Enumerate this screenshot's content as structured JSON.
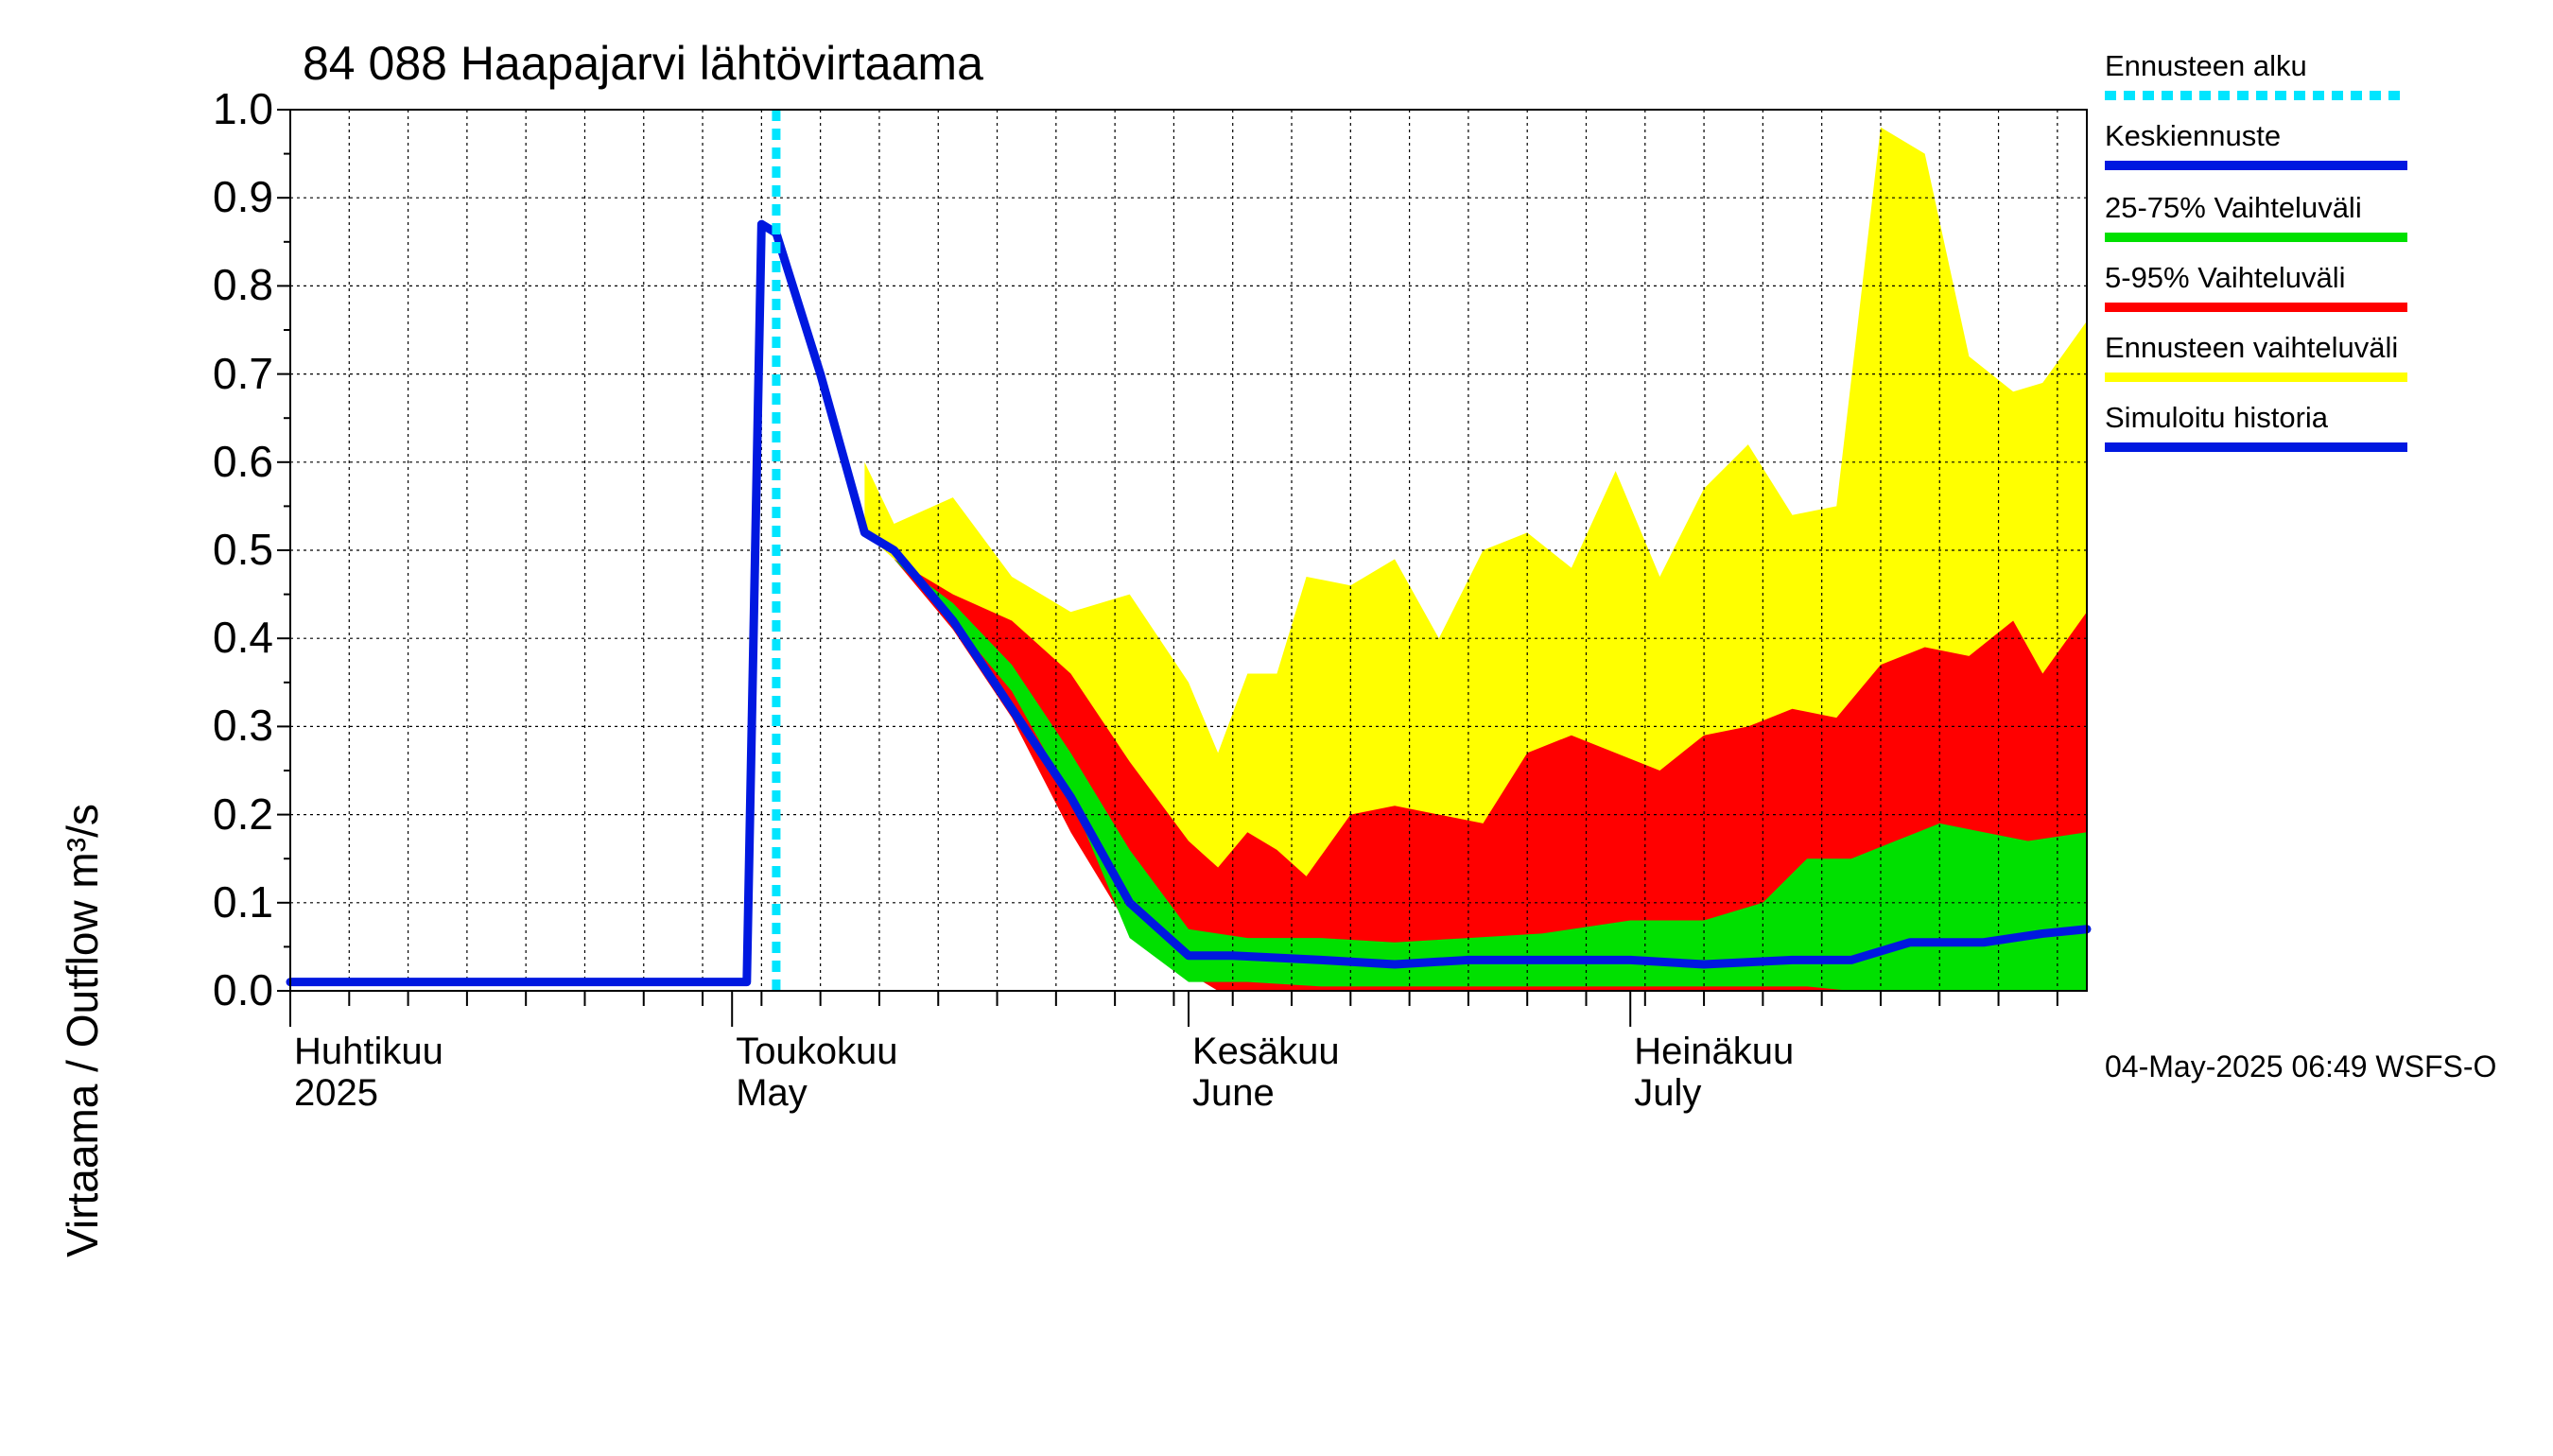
{
  "chart_data": {
    "type": "area",
    "title": "84 088 Haapajarvi lähtövirtaama",
    "ylabel": "Virtaama / Outflow    m³/s",
    "ylim": [
      0,
      1.0
    ],
    "yticks": [
      "0.0",
      "0.1",
      "0.2",
      "0.3",
      "0.4",
      "0.5",
      "0.6",
      "0.7",
      "0.8",
      "0.9",
      "1.0"
    ],
    "xlim": [
      "2025-04-01",
      "2025-08-01"
    ],
    "month_labels": [
      {
        "date": "2025-04-01",
        "fi": "Huhtikuu",
        "en": "2025"
      },
      {
        "date": "2025-05-01",
        "fi": "Toukokuu",
        "en": "May"
      },
      {
        "date": "2025-06-01",
        "fi": "Kesäkuu",
        "en": "June"
      },
      {
        "date": "2025-07-01",
        "fi": "Heinäkuu",
        "en": "July"
      }
    ],
    "forecast_start": "2025-05-04",
    "colors": {
      "forecast_start": "#00e5ff",
      "median": "#0018e0",
      "band_25_75": "#00e000",
      "band_5_95": "#ff0000",
      "band_range": "#ffff00",
      "history": "#0018e0"
    },
    "simulated_history": {
      "x": [
        "2025-04-01",
        "2025-05-02",
        "2025-05-03",
        "2025-05-04"
      ],
      "y": [
        0.01,
        0.01,
        0.87,
        0.86
      ]
    },
    "median": {
      "x": [
        "2025-05-04",
        "2025-05-07",
        "2025-05-10",
        "2025-05-12",
        "2025-05-16",
        "2025-05-20",
        "2025-05-24",
        "2025-05-28",
        "2025-06-01",
        "2025-06-04",
        "2025-06-10",
        "2025-06-15",
        "2025-06-20",
        "2025-06-25",
        "2025-07-01",
        "2025-07-06",
        "2025-07-12",
        "2025-07-16",
        "2025-07-20",
        "2025-07-25",
        "2025-07-29",
        "2025-08-01"
      ],
      "y": [
        0.86,
        0.7,
        0.52,
        0.5,
        0.42,
        0.32,
        0.22,
        0.1,
        0.04,
        0.04,
        0.035,
        0.03,
        0.035,
        0.035,
        0.035,
        0.03,
        0.035,
        0.035,
        0.055,
        0.055,
        0.065,
        0.07
      ]
    },
    "band_range": {
      "x": [
        "2025-05-10",
        "2025-05-12",
        "2025-05-16",
        "2025-05-20",
        "2025-05-24",
        "2025-05-28",
        "2025-06-01",
        "2025-06-03",
        "2025-06-05",
        "2025-06-07",
        "2025-06-09",
        "2025-06-12",
        "2025-06-15",
        "2025-06-18",
        "2025-06-21",
        "2025-06-24",
        "2025-06-27",
        "2025-06-30",
        "2025-07-03",
        "2025-07-06",
        "2025-07-09",
        "2025-07-12",
        "2025-07-15",
        "2025-07-18",
        "2025-07-21",
        "2025-07-24",
        "2025-07-27",
        "2025-07-29",
        "2025-08-01"
      ],
      "upper": [
        0.6,
        0.53,
        0.56,
        0.47,
        0.43,
        0.45,
        0.35,
        0.27,
        0.36,
        0.36,
        0.47,
        0.46,
        0.49,
        0.4,
        0.5,
        0.52,
        0.48,
        0.59,
        0.47,
        0.57,
        0.62,
        0.54,
        0.55,
        0.98,
        0.95,
        0.72,
        0.68,
        0.69,
        0.76
      ],
      "lower": [
        0.52,
        0.49,
        0.44,
        0.33,
        0.21,
        0.1,
        0.04,
        0.02,
        0.0,
        0.0,
        0.0,
        0.0,
        0.0,
        0.0,
        0.0,
        0.0,
        0.0,
        0.0,
        0.0,
        0.0,
        0.0,
        0.0,
        0.0,
        0.0,
        0.0,
        0.0,
        0.0,
        0.0,
        0.0
      ]
    },
    "band_5_95": {
      "x": [
        "2025-05-12",
        "2025-05-16",
        "2025-05-20",
        "2025-05-24",
        "2025-05-28",
        "2025-06-01",
        "2025-06-03",
        "2025-06-05",
        "2025-06-07",
        "2025-06-09",
        "2025-06-12",
        "2025-06-15",
        "2025-06-18",
        "2025-06-21",
        "2025-06-24",
        "2025-06-27",
        "2025-06-30",
        "2025-07-03",
        "2025-07-06",
        "2025-07-09",
        "2025-07-12",
        "2025-07-15",
        "2025-07-18",
        "2025-07-21",
        "2025-07-24",
        "2025-07-27",
        "2025-07-29",
        "2025-08-01"
      ],
      "upper": [
        0.49,
        0.45,
        0.42,
        0.36,
        0.26,
        0.17,
        0.14,
        0.18,
        0.16,
        0.13,
        0.2,
        0.21,
        0.2,
        0.19,
        0.27,
        0.29,
        0.27,
        0.25,
        0.29,
        0.3,
        0.32,
        0.31,
        0.37,
        0.39,
        0.38,
        0.42,
        0.36,
        0.43
      ],
      "lower": [
        0.49,
        0.41,
        0.31,
        0.18,
        0.07,
        0.02,
        0.0,
        0.0,
        0.0,
        0.0,
        0.0,
        0.0,
        0.0,
        0.0,
        0.0,
        0.0,
        0.0,
        0.0,
        0.0,
        0.0,
        0.0,
        0.0,
        0.0,
        0.0,
        0.0,
        0.0,
        0.0,
        0.0
      ]
    },
    "band_25_75": {
      "x": [
        "2025-05-12",
        "2025-05-16",
        "2025-05-20",
        "2025-05-24",
        "2025-05-28",
        "2025-06-01",
        "2025-06-05",
        "2025-06-10",
        "2025-06-15",
        "2025-06-20",
        "2025-06-25",
        "2025-07-01",
        "2025-07-06",
        "2025-07-10",
        "2025-07-13",
        "2025-07-16",
        "2025-07-19",
        "2025-07-22",
        "2025-07-25",
        "2025-07-28",
        "2025-08-01"
      ],
      "upper": [
        0.49,
        0.44,
        0.37,
        0.27,
        0.16,
        0.07,
        0.06,
        0.06,
        0.055,
        0.06,
        0.065,
        0.08,
        0.08,
        0.1,
        0.15,
        0.15,
        0.17,
        0.19,
        0.18,
        0.17,
        0.18
      ],
      "lower": [
        0.49,
        0.42,
        0.34,
        0.22,
        0.06,
        0.01,
        0.01,
        0.005,
        0.005,
        0.005,
        0.005,
        0.005,
        0.005,
        0.005,
        0.005,
        0.0,
        0.0,
        0.0,
        0.0,
        0.0,
        0.0
      ]
    }
  },
  "legend": [
    {
      "label": "Ennusteen alku",
      "color": "#00e5ff",
      "style": "dotted"
    },
    {
      "label": "Keskiennuste",
      "color": "#0018e0",
      "style": "solid"
    },
    {
      "label": "25-75% Vaihteluväli",
      "color": "#00e000",
      "style": "solid"
    },
    {
      "label": "5-95% Vaihteluväli",
      "color": "#ff0000",
      "style": "solid"
    },
    {
      "label": "Ennusteen vaihteluväli",
      "color": "#ffff00",
      "style": "solid"
    },
    {
      "label": "Simuloitu historia",
      "color": "#0018e0",
      "style": "solid"
    }
  ],
  "timestamp": "04-May-2025 06:49 WSFS-O"
}
